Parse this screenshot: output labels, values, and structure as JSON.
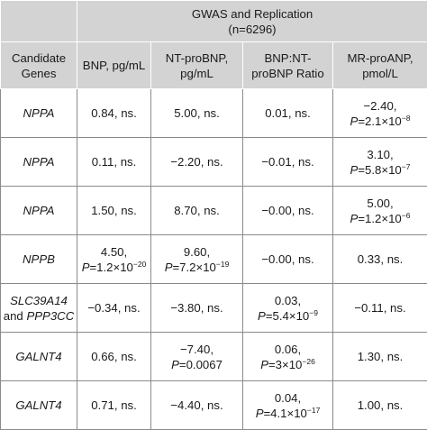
{
  "header": {
    "group_title": "GWAS and Replication",
    "group_subtitle": "(n=6296)",
    "gene_col": "Candidate Genes",
    "columns": [
      "BNP, pg/mL",
      "NT-proBNP, pg/mL",
      "BNP:NT-proBNP Ratio",
      "MR-proANP, pmol/L"
    ]
  },
  "rows": [
    {
      "gene": "NPPA",
      "cells": [
        {
          "v": "0.84, ns."
        },
        {
          "v": "5.00, ns."
        },
        {
          "v": "0.01, ns."
        },
        {
          "v": "−2.40,",
          "p": "P",
          "pv": "=2.1×10",
          "exp": "−8"
        }
      ]
    },
    {
      "gene": "NPPA",
      "cells": [
        {
          "v": "0.11, ns."
        },
        {
          "v": "−2.20, ns."
        },
        {
          "v": "−0.01, ns."
        },
        {
          "v": "3.10,",
          "p": "P",
          "pv": "=5.8×10",
          "exp": "−7"
        }
      ]
    },
    {
      "gene": "NPPA",
      "cells": [
        {
          "v": "1.50, ns."
        },
        {
          "v": "8.70, ns."
        },
        {
          "v": "−0.00, ns."
        },
        {
          "v": "5.00,",
          "p": "P",
          "pv": "=1.2×10",
          "exp": "−6"
        }
      ]
    },
    {
      "gene": "NPPB",
      "cells": [
        {
          "v": "4.50,",
          "p": "P",
          "pv": "=1.2×10",
          "exp": "−20"
        },
        {
          "v": "9.60,",
          "p": "P",
          "pv": "=7.2×10",
          "exp": "−19"
        },
        {
          "v": "−0.00, ns."
        },
        {
          "v": "0.33, ns."
        }
      ]
    },
    {
      "gene": "SLC39A14",
      "gene_join": "and",
      "gene2": "PPP3CC",
      "cells": [
        {
          "v": "−0.34, ns."
        },
        {
          "v": "−3.80, ns."
        },
        {
          "v": "0.03,",
          "p": "P",
          "pv": "=5.4×10",
          "exp": "−9"
        },
        {
          "v": "−0.11, ns."
        }
      ]
    },
    {
      "gene": "GALNT4",
      "cells": [
        {
          "v": "0.66, ns."
        },
        {
          "v": "−7.40,",
          "p": "P",
          "pv": "=0.0067"
        },
        {
          "v": "0.06,",
          "p": "P",
          "pv": "=3×10",
          "exp": "−26"
        },
        {
          "v": "1.30, ns."
        }
      ]
    },
    {
      "gene": "GALNT4",
      "cells": [
        {
          "v": "0.71, ns."
        },
        {
          "v": "−4.40, ns."
        },
        {
          "v": "0.04,",
          "p": "P",
          "pv": "=4.1×10",
          "exp": "−17"
        },
        {
          "v": "1.00, ns."
        }
      ]
    }
  ]
}
